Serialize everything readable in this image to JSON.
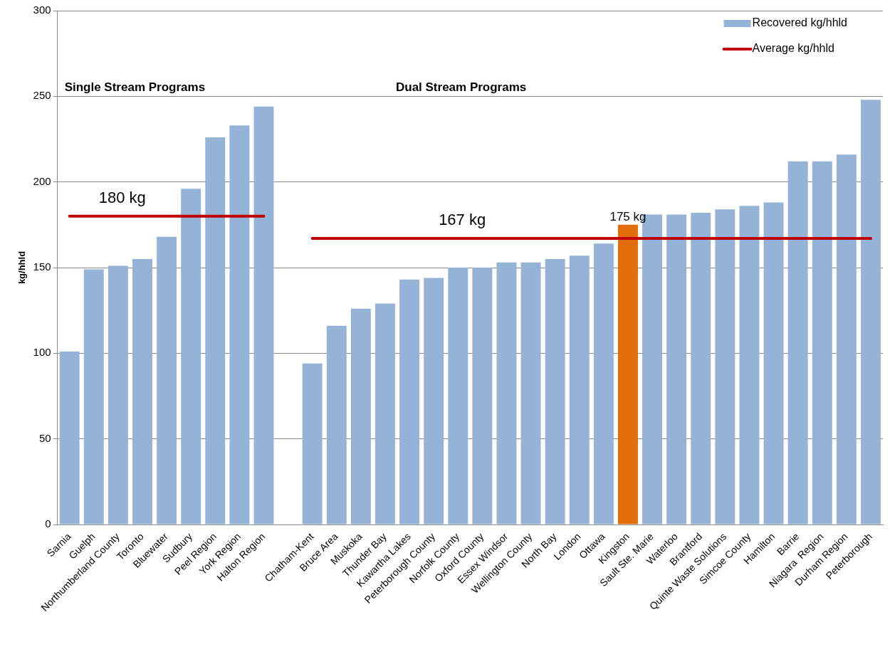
{
  "chart_data": {
    "type": "bar",
    "ylabel": "kg/hhld",
    "categories": [
      "Sarnia",
      "Guelph",
      "Northumberland County",
      "Toronto",
      "Bluewater",
      "Sudbury",
      "Peel Region",
      "York Region",
      "Halton Region",
      null,
      "Chatham-Kent",
      "Bruce Area",
      "Muskoka",
      "Thunder Bay",
      "Kawartha Lakes",
      "Peterborough County",
      "Norfolk County",
      "Oxford County",
      "Essex Windsor",
      "Wellington County",
      "North Bay",
      "London",
      "Ottawa",
      "Kingston",
      "Sault Ste. Marie",
      "Waterloo",
      "Brantford",
      "Quinte Waste Solutions",
      "Simcoe County",
      "Hamilton",
      "Barrie",
      "Niagara  Region",
      "Durham Region",
      "Peterborough"
    ],
    "series": [
      {
        "name": "Recovered kg/hhld",
        "color": "#95b3d7",
        "colors": [
          "#95b3d7",
          "#95b3d7",
          "#95b3d7",
          "#95b3d7",
          "#95b3d7",
          "#95b3d7",
          "#95b3d7",
          "#95b3d7",
          "#95b3d7",
          "#95b3d7",
          "#95b3d7",
          "#95b3d7",
          "#95b3d7",
          "#95b3d7",
          "#95b3d7",
          "#95b3d7",
          "#95b3d7",
          "#95b3d7",
          "#95b3d7",
          "#95b3d7",
          "#95b3d7",
          "#95b3d7",
          "#95b3d7",
          "#e46c0a",
          "#95b3d7",
          "#95b3d7",
          "#95b3d7",
          "#95b3d7",
          "#95b3d7",
          "#95b3d7",
          "#95b3d7",
          "#95b3d7",
          "#95b3d7",
          "#95b3d7"
        ],
        "values": [
          101,
          149,
          151,
          155,
          168,
          196,
          226,
          233,
          244,
          null,
          94,
          116,
          126,
          129,
          143,
          144,
          150,
          150,
          153,
          153,
          155,
          157,
          164,
          175,
          181,
          181,
          182,
          184,
          186,
          188,
          212,
          212,
          216,
          248
        ]
      },
      {
        "name": "Average kg/hhld",
        "type": "line",
        "color": "#c00000",
        "values": [
          180,
          180,
          180,
          180,
          180,
          180,
          180,
          180,
          180,
          null,
          167,
          167,
          167,
          167,
          167,
          167,
          167,
          167,
          167,
          167,
          167,
          167,
          167,
          167,
          167,
          167,
          167,
          167,
          167,
          167,
          167,
          167,
          167,
          167
        ]
      }
    ],
    "annotations": [
      "Single Stream Programs",
      "Dual Stream Programs",
      {
        "text": "180 kg",
        "x": "Guelph",
        "y": 180
      },
      {
        "text": "167 kg",
        "x": "Peterborough County",
        "y": 167
      },
      {
        "text": "175 kg",
        "x": "Kingston",
        "y": 175
      }
    ],
    "ylim": [
      0,
      300
    ],
    "yticks": [
      0,
      50,
      100,
      150,
      200,
      250,
      300
    ],
    "grid": "y",
    "legend": "top right",
    "marker": "none",
    "line_style": "solid"
  }
}
